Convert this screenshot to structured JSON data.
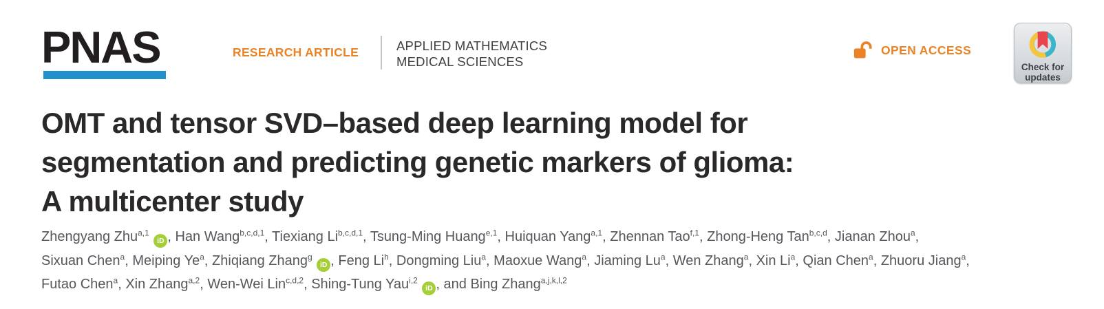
{
  "masthead": {
    "logo_text": "PNAS",
    "kicker": "RESEARCH ARTICLE",
    "categories": [
      "APPLIED MATHEMATICS",
      "MEDICAL SCIENCES"
    ],
    "open_access_label": "OPEN ACCESS",
    "check_badge_line1": "Check for",
    "check_badge_line2": "updates"
  },
  "article": {
    "title_line1": "OMT and tensor SVD–based deep learning model for",
    "title_line2": "segmentation and predicting genetic markers of glioma:",
    "title_line3": "A multicenter study",
    "orcid_icon_label": "iD",
    "authors": [
      {
        "name": "Zhengyang Zhu",
        "sup": "a,1",
        "orcid": true
      },
      {
        "name": "Han Wang",
        "sup": "b,c,d,1"
      },
      {
        "name": "Tiexiang Li",
        "sup": "b,c,d,1"
      },
      {
        "name": "Tsung-Ming Huang",
        "sup": "e,1"
      },
      {
        "name": "Huiquan Yang",
        "sup": "a,1"
      },
      {
        "name": "Zhennan Tao",
        "sup": "f,1"
      },
      {
        "name": "Zhong-Heng Tan",
        "sup": "b,c,d"
      },
      {
        "name": "Jianan Zhou",
        "sup": "a",
        "break_after": true
      },
      {
        "name": "Sixuan Chen",
        "sup": "a"
      },
      {
        "name": "Meiping Ye",
        "sup": "a"
      },
      {
        "name": "Zhiqiang Zhang",
        "sup": "g",
        "orcid": true
      },
      {
        "name": "Feng Li",
        "sup": "h"
      },
      {
        "name": "Dongming Liu",
        "sup": "a"
      },
      {
        "name": "Maoxue Wang",
        "sup": "a"
      },
      {
        "name": "Jiaming Lu",
        "sup": "a"
      },
      {
        "name": "Wen Zhang",
        "sup": "a"
      },
      {
        "name": "Xin Li",
        "sup": "a"
      },
      {
        "name": "Qian Chen",
        "sup": "a"
      },
      {
        "name": "Zhuoru Jiang",
        "sup": "a",
        "break_after": true
      },
      {
        "name": "Futao Chen",
        "sup": "a"
      },
      {
        "name": "Xin Zhang",
        "sup": "a,2"
      },
      {
        "name": "Wen-Wei Lin",
        "sup": "c,d,2"
      },
      {
        "name": "Shing-Tung Yau",
        "sup": "i,2",
        "orcid": true
      },
      {
        "name": "Bing Zhang",
        "sup": "a,j,k,l,2",
        "prefix": "and "
      }
    ]
  },
  "colors": {
    "brand_blue": "#2191cb",
    "brand_orange": "#e98325",
    "orcid_green": "#a6ce39",
    "crossmark_teal": "#3db5c9",
    "crossmark_yellow": "#f5c53c",
    "crossmark_red": "#e8454f"
  }
}
